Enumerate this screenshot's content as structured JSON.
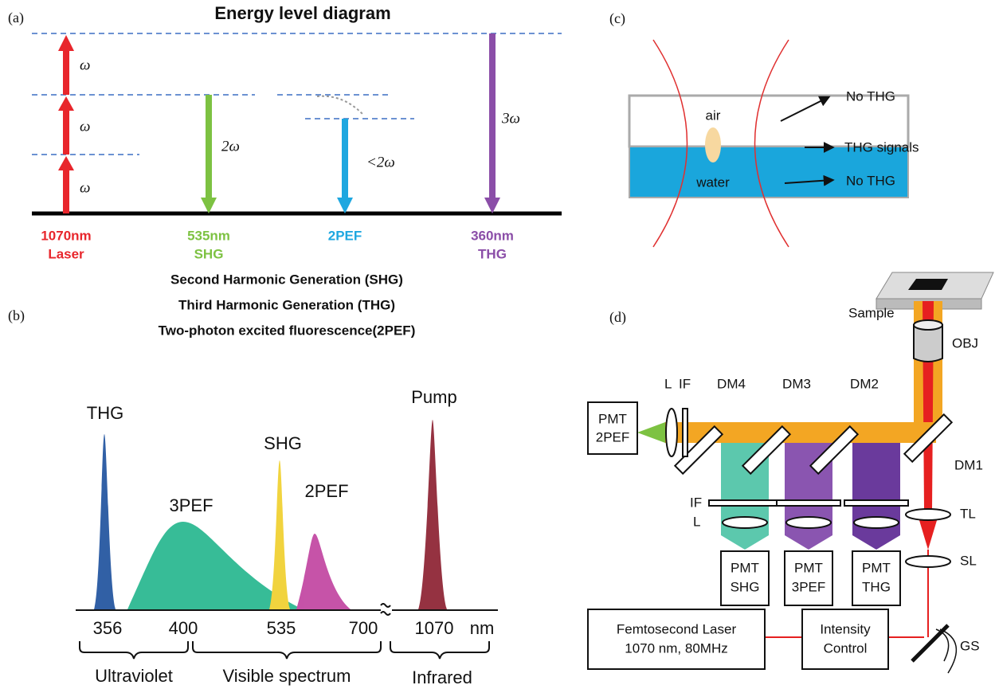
{
  "a": {
    "label": "(a)",
    "title": "Energy level diagram",
    "photons": [
      "ω",
      "ω",
      "ω",
      "2ω",
      "<2ω",
      "3ω"
    ],
    "columns": [
      [
        "1070nm",
        "Laser"
      ],
      [
        "535nm",
        "SHG"
      ],
      [
        "2PEF"
      ],
      [
        "360nm",
        "THG"
      ]
    ],
    "notes": [
      "Second Harmonic Generation (SHG)",
      "Third Harmonic Generation (THG)",
      "Two-photon excited fluorescence(2PEF)"
    ]
  },
  "b": {
    "label": "(b)",
    "peaks": [
      "THG",
      "3PEF",
      "SHG",
      "2PEF",
      "Pump"
    ],
    "ticks": [
      "356",
      "400",
      "535",
      "700",
      "1070"
    ],
    "unit": "nm",
    "regions": [
      "Ultraviolet",
      "Visible spectrum",
      "Infrared"
    ]
  },
  "c": {
    "label": "(c)",
    "media": [
      "air",
      "water"
    ],
    "outputs": [
      "No THG",
      "THG signals",
      "No THG"
    ]
  },
  "d": {
    "label": "(d)",
    "sample": "Sample",
    "objective": "OBJ",
    "lens_top": "L",
    "filter_top": "IF",
    "mirrors": [
      "DM4",
      "DM3",
      "DM2",
      "DM1"
    ],
    "filter_left": "IF",
    "lens_left": "L",
    "tube_lens": "TL",
    "scan_lens": "SL",
    "detectors": [
      [
        "PMT",
        "2PEF"
      ],
      [
        "PMT",
        "SHG"
      ],
      [
        "PMT",
        "3PEF"
      ],
      [
        "PMT",
        "THG"
      ]
    ],
    "laser": [
      "Femtosecond Laser",
      "1070 nm, 80MHz"
    ],
    "control": [
      "Intensity",
      "Control"
    ],
    "scanner": "GS"
  }
}
